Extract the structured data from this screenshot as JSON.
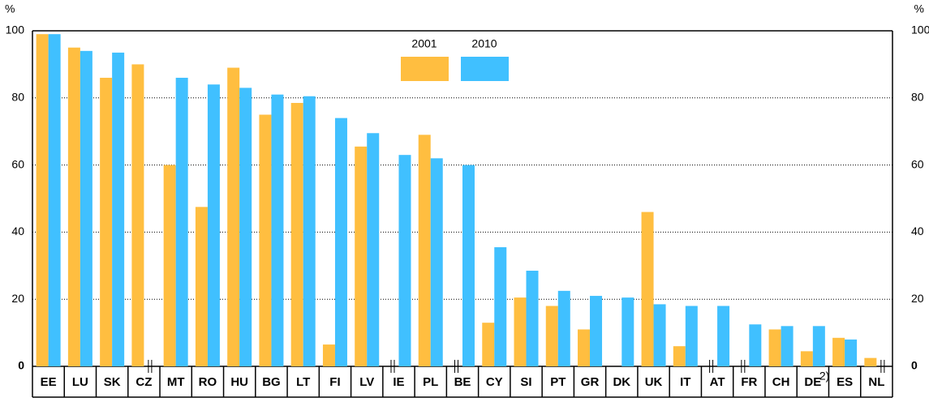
{
  "chart_data": {
    "type": "bar",
    "y_unit": "%",
    "categories": [
      "EE",
      "LU",
      "SK",
      "CZ",
      "MT",
      "RO",
      "HU",
      "BG",
      "LT",
      "FI",
      "LV",
      "IE",
      "PL",
      "BE",
      "CY",
      "SI",
      "PT",
      "GR",
      "DK",
      "UK",
      "IT",
      "AT",
      "FR",
      "CH",
      "DE",
      "ES",
      "NL"
    ],
    "category_notes": [
      null,
      null,
      null,
      null,
      null,
      null,
      null,
      null,
      null,
      null,
      null,
      null,
      null,
      null,
      null,
      null,
      null,
      null,
      null,
      null,
      null,
      null,
      null,
      null,
      "2)",
      null,
      null
    ],
    "series": [
      {
        "name": "2001",
        "color": "#ffbe40",
        "values": [
          99,
          95,
          86,
          90,
          60,
          47.5,
          89,
          75,
          78.5,
          6.5,
          65.5,
          null,
          69,
          null,
          13,
          20.5,
          18,
          11,
          0,
          46,
          6,
          null,
          null,
          11,
          4.5,
          8.5,
          2.5
        ]
      },
      {
        "name": "2010",
        "color": "#40c0ff",
        "values": [
          99,
          94,
          93.5,
          null,
          86,
          84,
          83,
          81,
          80.5,
          74,
          69.5,
          63,
          62,
          60,
          35.5,
          28.5,
          22.5,
          21,
          20.5,
          18.5,
          18,
          18,
          12.5,
          12,
          12,
          8,
          null
        ]
      }
    ],
    "ylim": [
      0,
      100
    ],
    "yticks": [
      0,
      20,
      40,
      60,
      80,
      100
    ],
    "grid": true
  }
}
